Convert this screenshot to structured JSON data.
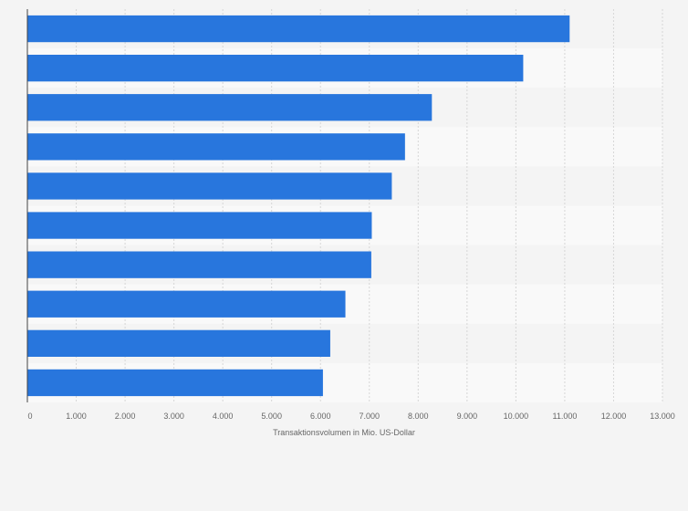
{
  "chart_data": {
    "type": "bar",
    "orientation": "horizontal",
    "categories": [
      "",
      "",
      "",
      "",
      "",
      "",
      "",
      "",
      "",
      ""
    ],
    "values": [
      11100,
      10150,
      8280,
      7730,
      7460,
      7050,
      7040,
      6510,
      6200,
      6050
    ],
    "xlabel": "Transaktionsvolumen in Mio. US-Dollar",
    "ylabel": "",
    "xlim": [
      0,
      13000
    ],
    "x_ticks": [
      0,
      1000,
      2000,
      3000,
      4000,
      5000,
      6000,
      7000,
      8000,
      9000,
      10000,
      11000,
      12000,
      13000
    ],
    "x_tick_labels": [
      "0",
      "1.000",
      "2.000",
      "3.000",
      "4.000",
      "5.000",
      "6.000",
      "7.000",
      "8.000",
      "9.000",
      "10.000",
      "11.000",
      "12.000",
      "13.000"
    ],
    "grid": true,
    "bar_color": "#2876dd",
    "band_colors": [
      "#f4f4f4",
      "#f9f9f9"
    ]
  }
}
